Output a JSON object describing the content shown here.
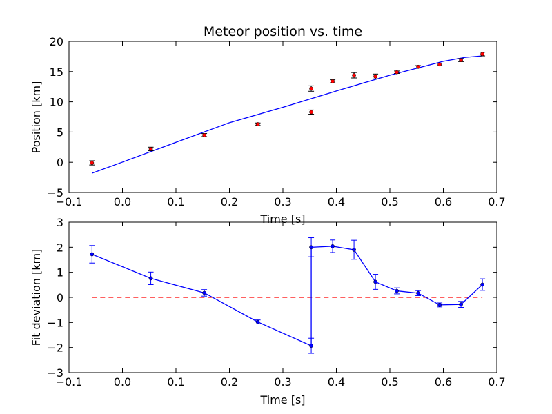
{
  "chart_data": [
    {
      "type": "scatter",
      "title": "Meteor position vs. time",
      "xlabel": "Time [s]",
      "ylabel": "Position [km]",
      "xlim": [
        -0.1,
        0.7
      ],
      "ylim": [
        -5,
        20
      ],
      "xticks": [
        -0.1,
        0.0,
        0.1,
        0.2,
        0.3,
        0.4,
        0.5,
        0.6,
        0.7
      ],
      "xtick_labels": [
        "−0.1",
        "0.0",
        "0.1",
        "0.2",
        "0.3",
        "0.4",
        "0.5",
        "0.6",
        "0.7"
      ],
      "yticks": [
        -5,
        0,
        5,
        10,
        15,
        20
      ],
      "ytick_labels": [
        "−5",
        "0",
        "5",
        "10",
        "15",
        "20"
      ],
      "grid": false,
      "points": {
        "color": "#ff0000",
        "x": [
          -0.057,
          0.053,
          0.153,
          0.253,
          0.353,
          0.353,
          0.393,
          0.433,
          0.473,
          0.513,
          0.553,
          0.593,
          0.633,
          0.673
        ],
        "y": [
          -0.1,
          2.2,
          4.5,
          6.3,
          12.2,
          8.3,
          13.4,
          14.4,
          14.2,
          14.9,
          15.8,
          16.2,
          16.9,
          17.9
        ],
        "err": [
          0.35,
          0.3,
          0.25,
          0.2,
          0.45,
          0.35,
          0.25,
          0.45,
          0.4,
          0.2,
          0.2,
          0.2,
          0.25,
          0.3
        ]
      },
      "fit_line": {
        "color": "#0000ff",
        "x": [
          -0.057,
          0.0,
          0.1,
          0.2,
          0.3,
          0.4,
          0.5,
          0.55,
          0.6,
          0.64,
          0.673
        ],
        "y": [
          -1.8,
          0.03,
          3.3,
          6.55,
          9.1,
          11.8,
          14.4,
          15.55,
          16.7,
          17.35,
          17.6
        ]
      }
    },
    {
      "type": "line",
      "xlabel": "Time [s]",
      "ylabel": "Fit deviation [km]",
      "xlim": [
        -0.1,
        0.7
      ],
      "ylim": [
        -3,
        3
      ],
      "xticks": [
        -0.1,
        0.0,
        0.1,
        0.2,
        0.3,
        0.4,
        0.5,
        0.6,
        0.7
      ],
      "xtick_labels": [
        "−0.1",
        "0.0",
        "0.1",
        "0.2",
        "0.3",
        "0.4",
        "0.5",
        "0.6",
        "0.7"
      ],
      "yticks": [
        -3,
        -2,
        -1,
        0,
        1,
        2,
        3
      ],
      "ytick_labels": [
        "−3",
        "−2",
        "−1",
        "0",
        "1",
        "2",
        "3"
      ],
      "grid": false,
      "series": {
        "color": "#0000ff",
        "x": [
          -0.057,
          0.053,
          0.153,
          0.253,
          0.353,
          0.353,
          0.393,
          0.433,
          0.473,
          0.513,
          0.553,
          0.593,
          0.633,
          0.673
        ],
        "y": [
          1.72,
          0.76,
          0.18,
          -0.98,
          -1.93,
          2.0,
          2.04,
          1.9,
          0.62,
          0.26,
          0.17,
          -0.3,
          -0.28,
          0.51
        ],
        "err": [
          0.35,
          0.25,
          0.13,
          0.08,
          0.3,
          0.38,
          0.25,
          0.38,
          0.3,
          0.12,
          0.1,
          0.08,
          0.12,
          0.23
        ]
      },
      "reference_line": {
        "y": 0,
        "x_range": [
          -0.057,
          0.673
        ],
        "color": "#ff0000",
        "style": "dashed"
      }
    }
  ]
}
